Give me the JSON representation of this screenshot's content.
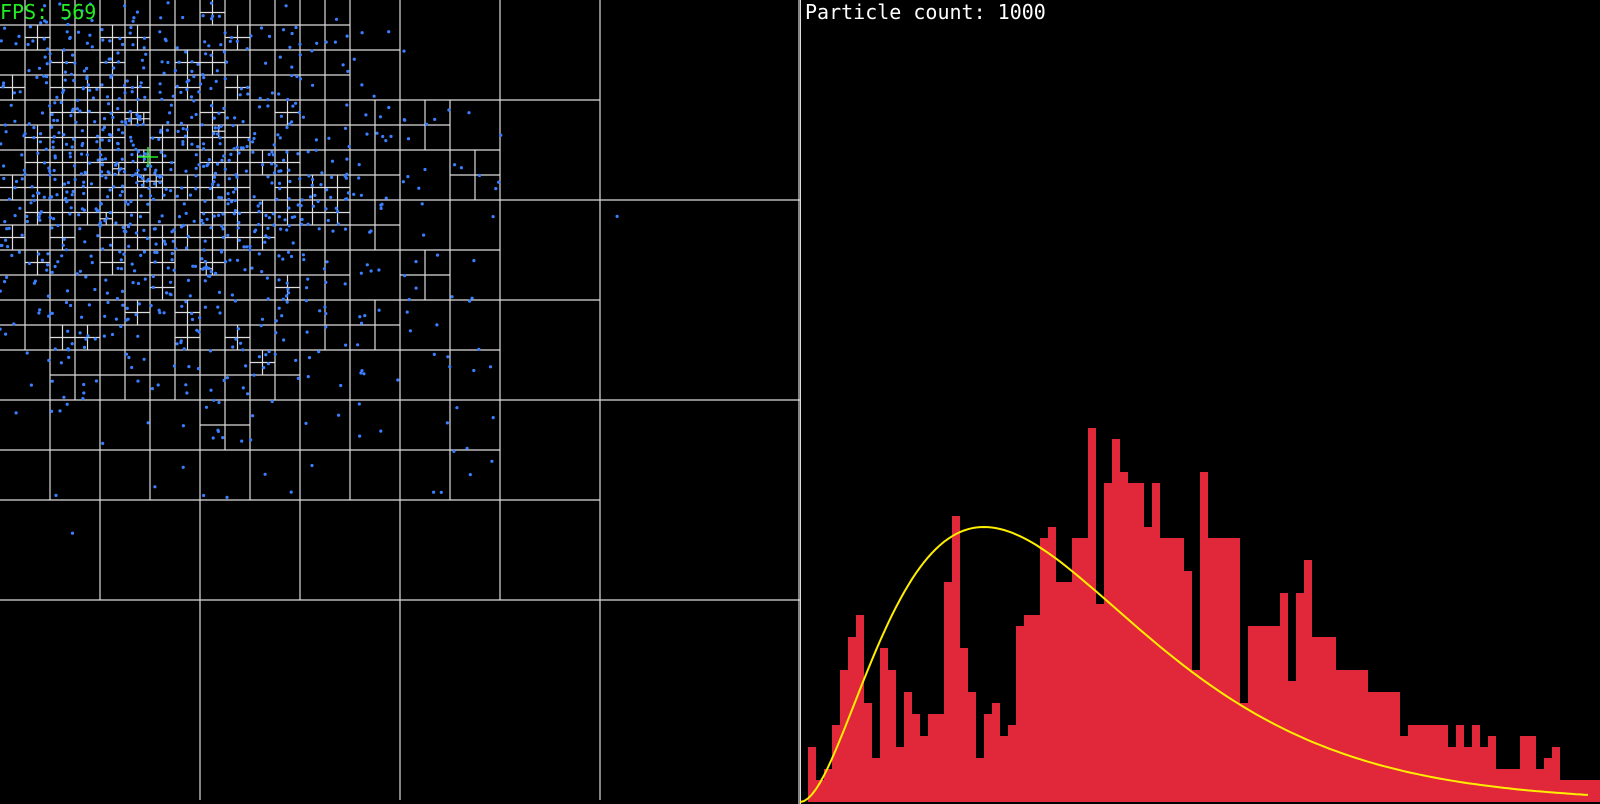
{
  "hud": {
    "fps_label": "FPS: 569",
    "particle_count_label": "Particle count: 1000"
  },
  "colors": {
    "background": "#000000",
    "particle": "#3a7fff",
    "quadtree_line": "#dddddd",
    "cursor": "#22ee22",
    "histogram_bar": "#e0283a",
    "fit_curve": "#ffee00"
  },
  "icons": {
    "cursor": "crosshair-icon"
  },
  "chart_data": {
    "type": "bar",
    "title": "",
    "xlabel": "",
    "ylabel": "",
    "bins": 100,
    "values": [
      5,
      2,
      3,
      7,
      12,
      15,
      17,
      9,
      4,
      14,
      12,
      5,
      10,
      8,
      6,
      8,
      8,
      20,
      26,
      14,
      10,
      4,
      8,
      9,
      6,
      7,
      16,
      17,
      17,
      24,
      25,
      20,
      20,
      24,
      24,
      34,
      18,
      29,
      33,
      30,
      29,
      29,
      25,
      29,
      24,
      24,
      24,
      21,
      12,
      30,
      24,
      24,
      24,
      24,
      9,
      16,
      16,
      16,
      16,
      19,
      11,
      19,
      22,
      15,
      15,
      15,
      12,
      12,
      12,
      12,
      10,
      10,
      10,
      10,
      6,
      7,
      7,
      7,
      7,
      7,
      5,
      7,
      5,
      7,
      5,
      6,
      3,
      3,
      3,
      6,
      6,
      3,
      4,
      5,
      2,
      2,
      2,
      2,
      2,
      3
    ],
    "fit_curve": {
      "type": "line",
      "peak_bin": 22,
      "peak_value": 25
    }
  }
}
